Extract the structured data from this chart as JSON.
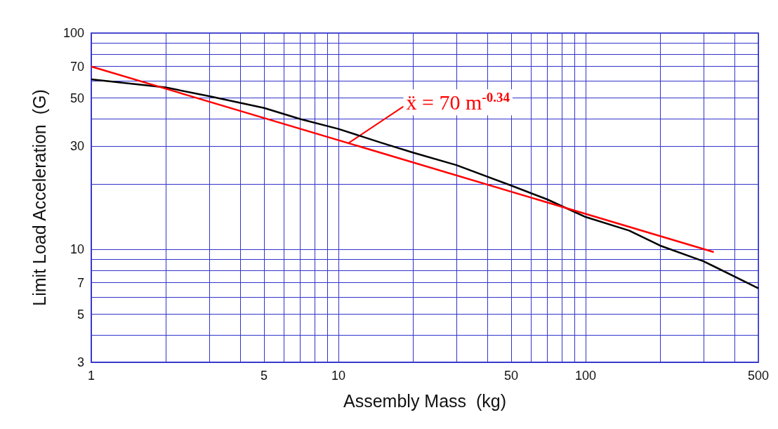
{
  "chart_data": {
    "type": "line",
    "xlabel": "Assembly Mass  (kg)",
    "ylabel": "Limit Load Acceleration  (G)",
    "log": "xy",
    "grid": true,
    "marker": "none",
    "line_style": "solid",
    "xlim": [
      1,
      500
    ],
    "ylim": [
      3,
      100
    ],
    "xticks": [
      1,
      {
        "value": 2,
        "label": null
      },
      {
        "value": 3,
        "label": null
      },
      {
        "value": 4,
        "label": null
      },
      5,
      {
        "value": 6,
        "label": null
      },
      {
        "value": 7,
        "label": null
      },
      {
        "value": 8,
        "label": null
      },
      {
        "value": 9,
        "label": null
      },
      10,
      {
        "value": 20,
        "label": null
      },
      {
        "value": 30,
        "label": null
      },
      {
        "value": 40,
        "label": null
      },
      50,
      {
        "value": 60,
        "label": null
      },
      {
        "value": 70,
        "label": null
      },
      {
        "value": 80,
        "label": null
      },
      {
        "value": 90,
        "label": null
      },
      100,
      {
        "value": 200,
        "label": null
      },
      {
        "value": 300,
        "label": null
      },
      {
        "value": 400,
        "label": null
      },
      500
    ],
    "yticks": [
      3,
      {
        "value": 4,
        "label": null
      },
      5,
      {
        "value": 6,
        "label": null
      },
      7,
      {
        "value": 8,
        "label": null
      },
      {
        "value": 9,
        "label": null
      },
      10,
      {
        "value": 20,
        "label": null
      },
      30,
      {
        "value": 40,
        "label": null
      },
      50,
      {
        "value": 60,
        "label": null
      },
      70,
      {
        "value": 80,
        "label": null
      },
      {
        "value": 90,
        "label": null
      },
      100
    ],
    "series": [
      {
        "color": "#000000",
        "x": [
          1,
          1.5,
          2,
          3,
          5,
          7,
          10,
          15,
          20,
          30,
          50,
          70,
          100,
          150,
          200,
          300,
          500
        ],
        "values": [
          61,
          58,
          56,
          51,
          45,
          40,
          36,
          31,
          28,
          24.5,
          19.7,
          17,
          14.1,
          12.2,
          10.4,
          8.8,
          6.6
        ]
      },
      {
        "color": "#ff0000",
        "x": [
          1,
          330
        ],
        "values": [
          70,
          9.7
        ]
      }
    ],
    "annotations": [
      {
        "text": "ẍ = 70 m$^{-0.34}$",
        "x": 11,
        "y": 31
      }
    ]
  }
}
